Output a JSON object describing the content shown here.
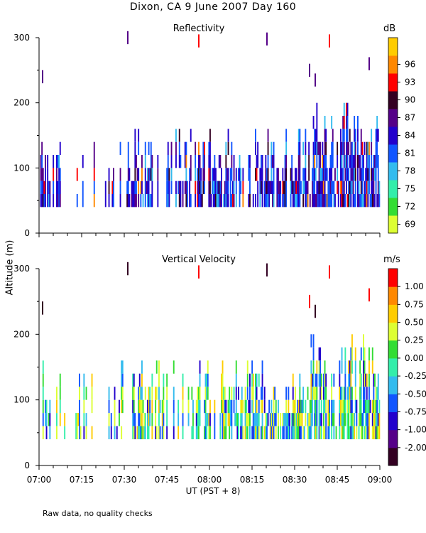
{
  "title": "Dixon, CA  9 June 2007  Day 160",
  "ylabel": "Altitude (m)",
  "xlabel": "UT  (PST + 8)",
  "footnote": "Raw data, no quality checks",
  "chart_data": [
    {
      "type": "heatmap",
      "title": "Reflectivity",
      "colorbar_unit": "dB",
      "colorbar_ticks": [
        "69",
        "72",
        "75",
        "78",
        "81",
        "84",
        "87",
        "90",
        "93",
        "96"
      ],
      "colorbar_colors": [
        "#ddff33",
        "#33dd33",
        "#33eeaa",
        "#33bbee",
        "#1155ff",
        "#2200cc",
        "#550088",
        "#330022",
        "#ff0000",
        "#ff8800",
        "#ffcc00"
      ],
      "x_ticks": [
        "07:00",
        "07:15",
        "07:30",
        "07:45",
        "08:00",
        "08:15",
        "08:30",
        "08:45",
        "09:00"
      ],
      "y_ticks": [
        "0",
        "100",
        "200",
        "300"
      ],
      "xlim": [
        0,
        120
      ],
      "ylim": [
        0,
        300
      ]
    },
    {
      "type": "heatmap",
      "title": "Vertical Velocity",
      "colorbar_unit": "m/s",
      "colorbar_ticks": [
        "-2.00",
        "-1.00",
        "-0.75",
        "-0.50",
        "-0.25",
        "0.00",
        "0.25",
        "0.50",
        "0.75",
        "1.00"
      ],
      "colorbar_colors": [
        "#330022",
        "#550088",
        "#2200cc",
        "#1155ff",
        "#33bbee",
        "#33eeaa",
        "#33dd33",
        "#ddff33",
        "#ffcc00",
        "#ff8800",
        "#ff0000"
      ],
      "x_ticks": [
        "07:00",
        "07:15",
        "07:30",
        "07:45",
        "08:00",
        "08:15",
        "08:30",
        "08:45",
        "09:00"
      ],
      "y_ticks": [
        "0",
        "100",
        "200",
        "300"
      ],
      "xlim": [
        0,
        120
      ],
      "ylim": [
        0,
        300
      ]
    }
  ]
}
